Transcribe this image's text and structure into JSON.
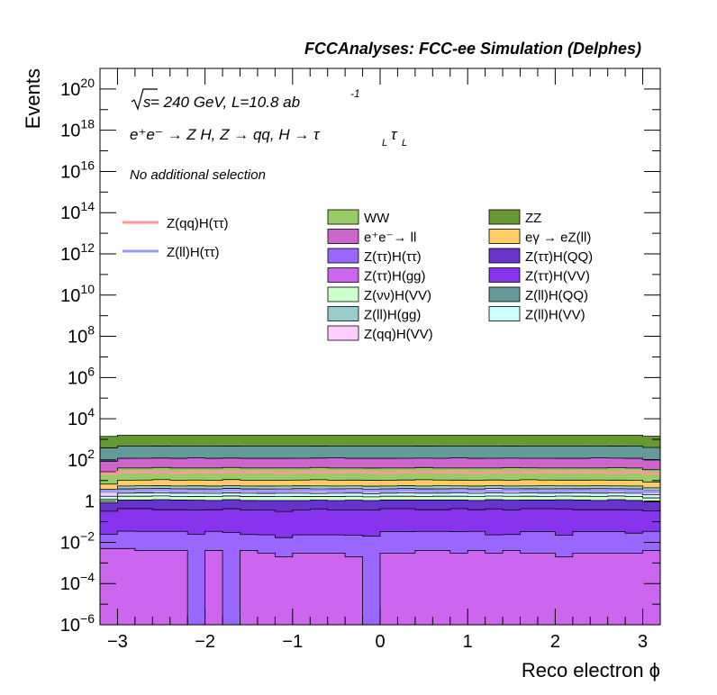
{
  "chart_data": {
    "type": "area",
    "stacked": true,
    "title": "FCCAnalyses: FCC-ee Simulation (Delphes)",
    "xlabel": "Reco electron ϕ",
    "ylabel": "Events",
    "xlim": [
      -3.2,
      3.2
    ],
    "ylim": [
      1e-06,
      1e+21
    ],
    "y_scale": "log",
    "grid": false,
    "x_ticks": [
      -3,
      -2,
      -1,
      0,
      1,
      2,
      3
    ],
    "x_tick_labels": [
      "−3",
      "−2",
      "−1",
      "0",
      "1",
      "2",
      "3"
    ],
    "y_tick_labels": [
      {
        "base": "10",
        "exp": "−6",
        "value": 1e-06
      },
      {
        "base": "10",
        "exp": "−4",
        "value": 0.0001
      },
      {
        "base": "10",
        "exp": "−2",
        "value": 0.01
      },
      {
        "base": "1",
        "exp": "",
        "value": 1
      },
      {
        "base": "10",
        "exp": "2",
        "value": 100.0
      },
      {
        "base": "10",
        "exp": "4",
        "value": 10000.0
      },
      {
        "base": "10",
        "exp": "6",
        "value": 1000000.0
      },
      {
        "base": "10",
        "exp": "8",
        "value": 100000000.0
      },
      {
        "base": "10",
        "exp": "10",
        "value": 10000000000.0
      },
      {
        "base": "10",
        "exp": "12",
        "value": 1000000000000.0
      },
      {
        "base": "10",
        "exp": "14",
        "value": 100000000000000.0
      },
      {
        "base": "10",
        "exp": "16",
        "value": 1e+16
      },
      {
        "base": "10",
        "exp": "18",
        "value": 1e+18
      },
      {
        "base": "10",
        "exp": "20",
        "value": 1e+20
      }
    ],
    "annotations": {
      "sqrt_s": "s",
      "energy_lumi": " = 240 GeV, L=10.8 ab",
      "lumi_exp": "-1",
      "process": "e⁺e⁻ → Z H, Z  → qq, H  → τ",
      "process_sub": "L",
      "selection": "No additional selection"
    },
    "bin_count": 32,
    "stack_series": [
      {
        "name": "Z(ττ)H(gg)",
        "color": "#cc66ee",
        "values": [
          0.005,
          0.005,
          0.004,
          0.004,
          0.004,
          1e-07,
          0.004,
          1e-07,
          0.004,
          0.003,
          0.002,
          0.003,
          0.003,
          0.003,
          0.002,
          1e-07,
          0.003,
          0.003,
          0.004,
          0.004,
          0.003,
          0.004,
          0.003,
          0.004,
          0.003,
          0.003,
          0.002,
          0.003,
          0.003,
          0.003,
          0.003,
          0.004
        ]
      },
      {
        "name": "Z(ττ)H(ττ)",
        "color": "#9966ff",
        "values": [
          0.02,
          0.03,
          0.03,
          0.03,
          0.03,
          0.025,
          0.03,
          0.03,
          0.02,
          0.02,
          0.015,
          0.02,
          0.02,
          0.02,
          0.02,
          0.02,
          0.03,
          0.03,
          0.03,
          0.03,
          0.03,
          0.03,
          0.02,
          0.02,
          0.03,
          0.03,
          0.02,
          0.03,
          0.03,
          0.03,
          0.025,
          0.03
        ]
      },
      {
        "name": "Z(ττ)H(VV)",
        "color": "#8833ee",
        "values": [
          0.3,
          0.4,
          0.4,
          0.35,
          0.35,
          0.35,
          0.35,
          0.4,
          0.35,
          0.35,
          0.3,
          0.35,
          0.4,
          0.35,
          0.35,
          0.35,
          0.4,
          0.4,
          0.35,
          0.35,
          0.4,
          0.35,
          0.4,
          0.35,
          0.4,
          0.4,
          0.4,
          0.35,
          0.35,
          0.35,
          0.35,
          0.3
        ]
      },
      {
        "name": "Z(ττ)H(QQ)",
        "color": "#6633cc",
        "values": [
          0.5,
          0.7,
          0.7,
          0.8,
          0.75,
          0.75,
          0.7,
          0.75,
          0.7,
          0.7,
          0.75,
          0.7,
          0.7,
          0.7,
          0.75,
          0.7,
          0.7,
          0.7,
          0.75,
          0.75,
          0.7,
          0.7,
          0.75,
          0.75,
          0.7,
          0.7,
          0.75,
          0.75,
          0.7,
          0.8,
          0.7,
          0.6
        ]
      },
      {
        "name": "Z(νν)H(VV)",
        "color": "#ccffcc",
        "values": [
          0.4,
          0.6,
          0.6,
          0.6,
          0.55,
          0.55,
          0.6,
          0.6,
          0.6,
          0.6,
          0.6,
          0.6,
          0.55,
          0.6,
          0.6,
          0.55,
          0.6,
          0.6,
          0.55,
          0.6,
          0.6,
          0.6,
          0.6,
          0.6,
          0.6,
          0.55,
          0.6,
          0.6,
          0.6,
          0.6,
          0.6,
          0.5
        ]
      },
      {
        "name": "Z(ll)H(VV)",
        "color": "#ccffff",
        "values": [
          0.5,
          0.7,
          0.8,
          0.7,
          0.75,
          0.75,
          0.7,
          0.75,
          0.75,
          0.7,
          0.75,
          0.75,
          0.7,
          0.75,
          0.75,
          0.7,
          0.7,
          0.75,
          0.75,
          0.7,
          0.75,
          0.7,
          0.75,
          0.7,
          0.75,
          0.75,
          0.7,
          0.75,
          0.75,
          0.7,
          0.75,
          0.6
        ]
      },
      {
        "name": "Z(qq)H(VV)",
        "color": "#ffccff",
        "values": [
          1.0,
          1.5,
          1.5,
          1.6,
          1.5,
          1.5,
          1.5,
          1.6,
          1.5,
          1.5,
          1.5,
          1.6,
          1.5,
          1.5,
          1.5,
          1.5,
          1.5,
          1.6,
          1.5,
          1.5,
          1.5,
          1.5,
          1.6,
          1.5,
          1.5,
          1.5,
          1.5,
          1.5,
          1.6,
          1.5,
          1.5,
          1.2
        ]
      },
      {
        "name": "Z(ll)H(gg)",
        "color": "#99cccc",
        "values": [
          1.0,
          1.5,
          1.5,
          1.5,
          1.5,
          1.6,
          1.5,
          1.5,
          1.5,
          1.5,
          1.5,
          1.5,
          1.6,
          1.5,
          1.5,
          1.5,
          1.5,
          1.5,
          1.5,
          1.6,
          1.5,
          1.5,
          1.5,
          1.5,
          1.5,
          1.6,
          1.5,
          1.5,
          1.5,
          1.5,
          1.5,
          1.2
        ]
      },
      {
        "name": "eγ → eZ(ll)",
        "color": "#ffcc66",
        "values": [
          3,
          5,
          5,
          5.5,
          5,
          5,
          5,
          5.5,
          5,
          5,
          5,
          5,
          5.5,
          5,
          5,
          5,
          5,
          5,
          5.5,
          5,
          5,
          5,
          5,
          5,
          5.5,
          5,
          5,
          5,
          5,
          5,
          5,
          4
        ]
      },
      {
        "name": "WW",
        "color": "#99cc66",
        "values": [
          20,
          30,
          30,
          32,
          30,
          30,
          30,
          32,
          30,
          30,
          30,
          30,
          32,
          30,
          30,
          30,
          30,
          30,
          32,
          30,
          30,
          30,
          30,
          32,
          30,
          30,
          30,
          30,
          30,
          32,
          30,
          25
        ]
      },
      {
        "name": "e⁺e⁻→ ll",
        "color": "#cc66cc",
        "values": [
          60,
          80,
          80,
          80,
          80,
          85,
          80,
          80,
          80,
          80,
          80,
          80,
          80,
          85,
          80,
          80,
          80,
          80,
          80,
          80,
          85,
          80,
          80,
          80,
          80,
          80,
          80,
          80,
          85,
          80,
          80,
          70
        ]
      },
      {
        "name": "Z(ll)H(QQ)",
        "color": "#669999",
        "values": [
          300,
          350,
          350,
          350,
          350,
          350,
          350,
          350,
          350,
          350,
          350,
          350,
          350,
          350,
          350,
          350,
          350,
          350,
          350,
          350,
          350,
          350,
          350,
          350,
          350,
          350,
          350,
          350,
          350,
          350,
          350,
          300
        ]
      },
      {
        "name": "ZZ",
        "color": "#669933",
        "values": [
          1000,
          1100,
          1100,
          1100,
          1100,
          1100,
          1100,
          1100,
          1100,
          1100,
          1100,
          1100,
          1100,
          1100,
          1100,
          1100,
          1100,
          1100,
          1100,
          1100,
          1100,
          1100,
          1100,
          1100,
          1100,
          1100,
          1100,
          1100,
          1100,
          1100,
          1100,
          1000
        ]
      }
    ],
    "line_series": [
      {
        "name": "Z(qq)H(ττ)",
        "color": "#ff9999",
        "values": [
          22,
          25,
          26,
          25,
          24,
          26,
          25,
          27,
          25,
          26,
          24,
          25,
          26,
          25,
          27,
          25,
          24,
          26,
          25,
          25,
          26,
          24,
          25,
          26,
          25,
          27,
          25,
          26,
          25,
          24,
          26,
          22
        ]
      },
      {
        "name": "Z(ll)H(ττ)",
        "color": "#9999ff",
        "values": [
          3.0,
          3.2,
          3.1,
          3.3,
          3.0,
          3.2,
          3.1,
          3.3,
          3.2,
          3.0,
          3.1,
          3.2,
          3.3,
          3.1,
          3.0,
          3.2,
          3.1,
          3.3,
          3.2,
          3.1,
          3.0,
          3.2,
          3.1,
          3.3,
          3.2,
          3.0,
          3.1,
          3.2,
          3.1,
          3.3,
          3.1,
          2.8
        ]
      }
    ],
    "legend": {
      "placement": "top",
      "lines": [
        "Z(qq)H(ττ)",
        "Z(ll)H(ττ)"
      ],
      "col1": [
        "WW",
        "e⁺e⁻→ ll",
        "Z(ττ)H(ττ)",
        "Z(ττ)H(gg)",
        "Z(νν)H(VV)",
        "Z(ll)H(gg)",
        "Z(qq)H(VV)"
      ],
      "col2": [
        "ZZ",
        "eγ → eZ(ll)",
        "Z(ττ)H(QQ)",
        "Z(ττ)H(VV)",
        "Z(ll)H(QQ)",
        "Z(ll)H(VV)"
      ]
    }
  }
}
